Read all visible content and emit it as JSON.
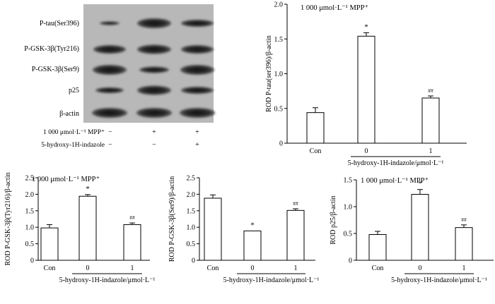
{
  "blot": {
    "lane_labels": [
      "P-tau(Ser396)",
      "P-GSK-3β(Tyr216)",
      "P-GSK-3β(Ser9)",
      "p25",
      "β-actin"
    ],
    "conditions": [
      {
        "label": "1 000 μmol·L⁻¹ MPP⁺",
        "marks": [
          "−",
          "+",
          "+"
        ]
      },
      {
        "label": "5-hydroxy-1H-indazole",
        "marks": [
          "−",
          "−",
          "+"
        ]
      }
    ]
  },
  "chart_data": [
    {
      "type": "bar",
      "title": "1 000 μmol·L⁻¹ MPP⁺",
      "ylabel": "ROD P-tau(ser396)/β-actin",
      "xlabel": "5-hydroxy-1H-indazole/μmol·L⁻¹",
      "categories": [
        "Con",
        "0",
        "1"
      ],
      "values": [
        0.44,
        1.54,
        0.65
      ],
      "errors": [
        0.07,
        0.05,
        0.03
      ],
      "annotations": [
        "",
        "*",
        "##"
      ],
      "ylim": [
        0,
        2.0
      ],
      "yticks": [
        0,
        0.5,
        1.0,
        1.5,
        2.0
      ],
      "ytick_labels": [
        "0",
        "0.5",
        "1.0",
        "1.5",
        "2.0"
      ]
    },
    {
      "type": "bar",
      "title": "1 000 μmol·L⁻¹ MPP⁺",
      "ylabel": "ROD P-GSK-3β(Tyr216)/β-actin",
      "xlabel": "5-hydroxy-1H-indazole/μmol·L⁻¹",
      "categories": [
        "Con",
        "0",
        "1"
      ],
      "values": [
        0.98,
        1.94,
        1.08
      ],
      "errors": [
        0.1,
        0.05,
        0.05
      ],
      "annotations": [
        "",
        "*",
        "##"
      ],
      "ylim": [
        0,
        2.5
      ],
      "yticks": [
        0,
        0.5,
        1.0,
        1.5,
        2.0,
        2.5
      ],
      "ytick_labels": [
        "0",
        "0.5",
        "1.0",
        "1.5",
        "2.0",
        "2.5"
      ]
    },
    {
      "type": "bar",
      "title": "",
      "ylabel": "ROD P-GSK-3β(Ser9)/β-actin",
      "xlabel": "5-hydroxy-1H-indazole/μmol·L⁻¹",
      "categories": [
        "Con",
        "0",
        "1"
      ],
      "values": [
        1.88,
        0.89,
        1.51
      ],
      "errors": [
        0.1,
        0.0,
        0.05
      ],
      "annotations": [
        "",
        "*",
        "##"
      ],
      "ylim": [
        0,
        2.5
      ],
      "yticks": [
        0,
        0.5,
        1.0,
        1.5,
        2.0,
        2.5
      ],
      "ytick_labels": [
        "0",
        "0.5",
        "1.0",
        "1.5",
        "2.0",
        "2.5"
      ]
    },
    {
      "type": "bar",
      "title": "1 000 μmol·L⁻¹ MPP⁺",
      "ylabel": "ROD p25/β-actin",
      "xlabel": "5-hydroxy-1H-indazole/μmol·L⁻¹",
      "categories": [
        "Con",
        "0",
        "1"
      ],
      "values": [
        0.48,
        1.23,
        0.61
      ],
      "errors": [
        0.06,
        0.09,
        0.05
      ],
      "annotations": [
        "",
        "*",
        "##"
      ],
      "ylim": [
        0,
        1.5
      ],
      "yticks": [
        0,
        0.5,
        1.0,
        1.5
      ],
      "ytick_labels": [
        "0",
        "0.5",
        "1.0",
        "1.5"
      ]
    }
  ]
}
